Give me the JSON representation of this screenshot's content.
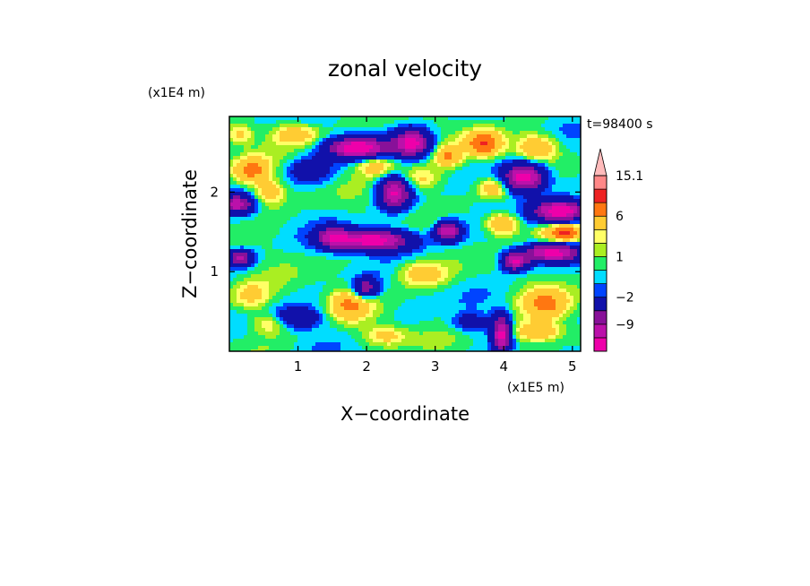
{
  "chart_data": {
    "type": "heatmap",
    "title": "zonal velocity",
    "xlabel": "X−coordinate",
    "ylabel": "Z−coordinate",
    "x_scale_note": "(x1E5 m)",
    "y_scale_note": "(x1E4 m)",
    "time_label": "t=98400 s",
    "xlim": [
      0,
      5.12
    ],
    "ylim": [
      0,
      2.95
    ],
    "x_ticks": [
      1,
      2,
      3,
      4,
      5
    ],
    "x_tick_labels": [
      "1",
      "2",
      "3",
      "4",
      "5"
    ],
    "y_ticks": [
      1,
      2
    ],
    "y_tick_labels": [
      "1",
      "2"
    ],
    "colorbar": {
      "levels": [
        -15,
        -12,
        -9,
        -6,
        -2,
        -1,
        0,
        1,
        2,
        3,
        6,
        9,
        12,
        15.1
      ],
      "colors": [
        "#ee00aa",
        "#bb11aa",
        "#881199",
        "#1111aa",
        "#0044ff",
        "#00ddff",
        "#22ee66",
        "#aaee22",
        "#ffff66",
        "#ffcc33",
        "#ff7711",
        "#ee2222",
        "#ff8888",
        "#ffbbbb"
      ],
      "tick_labels": [
        "15.1",
        "6",
        "1",
        "−2",
        "−9"
      ],
      "tick_values": [
        15.1,
        6,
        1,
        -2,
        -9
      ]
    }
  }
}
